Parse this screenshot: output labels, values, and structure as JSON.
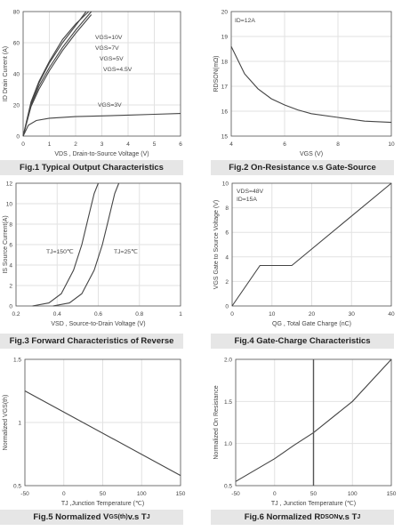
{
  "figures": [
    {
      "key": "fig1",
      "caption": "Fig.1 Typical Output Characteristics"
    },
    {
      "key": "fig2",
      "caption": "Fig.2 On-Resistance v.s Gate-Source"
    },
    {
      "key": "fig3",
      "caption": "Fig.3 Forward Characteristics of Reverse"
    },
    {
      "key": "fig4",
      "caption": "Fig.4 Gate-Charge Characteristics"
    },
    {
      "key": "fig5",
      "caption_main": "Fig.5 Normalized V",
      "caption_sub": "GS(th)",
      "caption_tail": " v.s T",
      "caption_tail_sub": "J"
    },
    {
      "key": "fig6",
      "caption_main": "Fig.6 Normalized R",
      "caption_sub": "DSON",
      "caption_tail": " v.s T",
      "caption_tail_sub": "J"
    }
  ],
  "chart_data": [
    {
      "key": "fig1",
      "type": "line",
      "xlabel": "VDS , Drain-to-Source Voltage (V)",
      "ylabel": "ID Drain Current (A)",
      "xlim": [
        0,
        6
      ],
      "ylim": [
        0,
        80
      ],
      "xticks": [
        "0",
        "1",
        "2",
        "3",
        "4",
        "5",
        "6"
      ],
      "yticks": [
        "0",
        "20",
        "40",
        "60",
        "80"
      ],
      "series": [
        {
          "name": "VGS=10V",
          "x": [
            0,
            0.3,
            0.6,
            1.0,
            1.5,
            2.0,
            2.5
          ],
          "y": [
            0,
            22,
            35,
            48,
            62,
            72,
            80
          ]
        },
        {
          "name": "VGS=7V",
          "x": [
            0,
            0.3,
            0.6,
            1.0,
            1.5,
            2.0,
            2.4
          ],
          "y": [
            0,
            21,
            34,
            47,
            60,
            71,
            80
          ]
        },
        {
          "name": "VGS=5V",
          "x": [
            0,
            0.3,
            0.6,
            1.0,
            1.5,
            2.0,
            2.6
          ],
          "y": [
            0,
            20,
            32,
            44,
            57,
            68,
            80
          ]
        },
        {
          "name": "VGS=4.5V",
          "x": [
            0,
            0.3,
            0.6,
            1.0,
            1.5,
            2.0,
            2.6
          ],
          "y": [
            0,
            19,
            30,
            42,
            55,
            66,
            78
          ]
        },
        {
          "name": "VGS=3V",
          "x": [
            0,
            0.2,
            0.5,
            1.0,
            2.0,
            3.0,
            4.0,
            5.0,
            6.0
          ],
          "y": [
            0,
            7,
            10,
            11.5,
            12.5,
            13,
            13.5,
            14,
            14.5
          ]
        }
      ]
    },
    {
      "key": "fig2",
      "type": "line",
      "annotation": "ID=12A",
      "xlabel": "VGS (V)",
      "ylabel": "RDSON(mΩ)",
      "xlim": [
        4,
        10
      ],
      "ylim": [
        15,
        20
      ],
      "xticks": [
        "4",
        "6",
        "8",
        "10"
      ],
      "yticks": [
        "15",
        "16",
        "17",
        "18",
        "19",
        "20"
      ],
      "series": [
        {
          "x": [
            4,
            4.5,
            5,
            5.5,
            6,
            6.5,
            7,
            8,
            9,
            10
          ],
          "y": [
            18.6,
            17.5,
            16.9,
            16.5,
            16.25,
            16.05,
            15.9,
            15.75,
            15.6,
            15.55
          ]
        }
      ]
    },
    {
      "key": "fig3",
      "type": "line",
      "xlabel": "VSD , Source-to-Drain Voltage (V)",
      "ylabel": "IS Source Current(A)",
      "xlim": [
        0.2,
        1
      ],
      "ylim": [
        0,
        12
      ],
      "xticks": [
        "0.2",
        "0.4",
        "0.6",
        "0.8",
        "1"
      ],
      "yticks": [
        "0",
        "2",
        "4",
        "6",
        "8",
        "10",
        "12"
      ],
      "series": [
        {
          "name": "TJ=150℃",
          "x": [
            0.28,
            0.36,
            0.42,
            0.48,
            0.52,
            0.55,
            0.58,
            0.6
          ],
          "y": [
            0,
            0.3,
            1.2,
            3.5,
            6,
            8.5,
            11,
            12
          ]
        },
        {
          "name": "TJ=25℃",
          "x": [
            0.38,
            0.46,
            0.52,
            0.58,
            0.62,
            0.65,
            0.68,
            0.7
          ],
          "y": [
            0,
            0.3,
            1.2,
            3.5,
            6,
            8.5,
            11,
            12
          ]
        }
      ]
    },
    {
      "key": "fig4",
      "type": "line",
      "annotations": [
        "VDS=48V",
        "ID=15A"
      ],
      "xlabel": "QG , Total Gate Charge (nC)",
      "ylabel": "VGS  Gate to Source Voltage (V)",
      "xlim": [
        0,
        40
      ],
      "ylim": [
        0,
        10
      ],
      "xticks": [
        "0",
        "10",
        "20",
        "30",
        "40"
      ],
      "yticks": [
        "0",
        "2",
        "4",
        "6",
        "8",
        "10"
      ],
      "series": [
        {
          "x": [
            0,
            7,
            15,
            40
          ],
          "y": [
            0,
            3.3,
            3.3,
            10
          ]
        }
      ]
    },
    {
      "key": "fig5",
      "type": "line",
      "xlabel": "TJ ,Junction Temperature (℃)",
      "ylabel": "Normalized VGS(th)",
      "xlim": [
        -50,
        150
      ],
      "ylim": [
        0.5,
        1.5
      ],
      "xticks": [
        "-50",
        "0",
        "50",
        "100",
        "150"
      ],
      "yticks": [
        "0.5",
        "1",
        "1.5"
      ],
      "series": [
        {
          "x": [
            -50,
            150
          ],
          "y": [
            1.25,
            0.58
          ]
        }
      ]
    },
    {
      "key": "fig6",
      "type": "line",
      "xlabel": "TJ , Junction Temperature (℃)",
      "ylabel": "Normalized On Resistance",
      "xlim": [
        -50,
        150
      ],
      "ylim": [
        0.5,
        2.0
      ],
      "xticks": [
        "-50",
        "0",
        "50",
        "100",
        "150"
      ],
      "yticks": [
        "0.5",
        "1.0",
        "1.5",
        "2.0"
      ],
      "series": [
        {
          "x": [
            -50,
            0,
            25,
            50,
            100,
            150
          ],
          "y": [
            0.55,
            0.82,
            0.98,
            1.13,
            1.5,
            2.0
          ]
        }
      ]
    }
  ]
}
